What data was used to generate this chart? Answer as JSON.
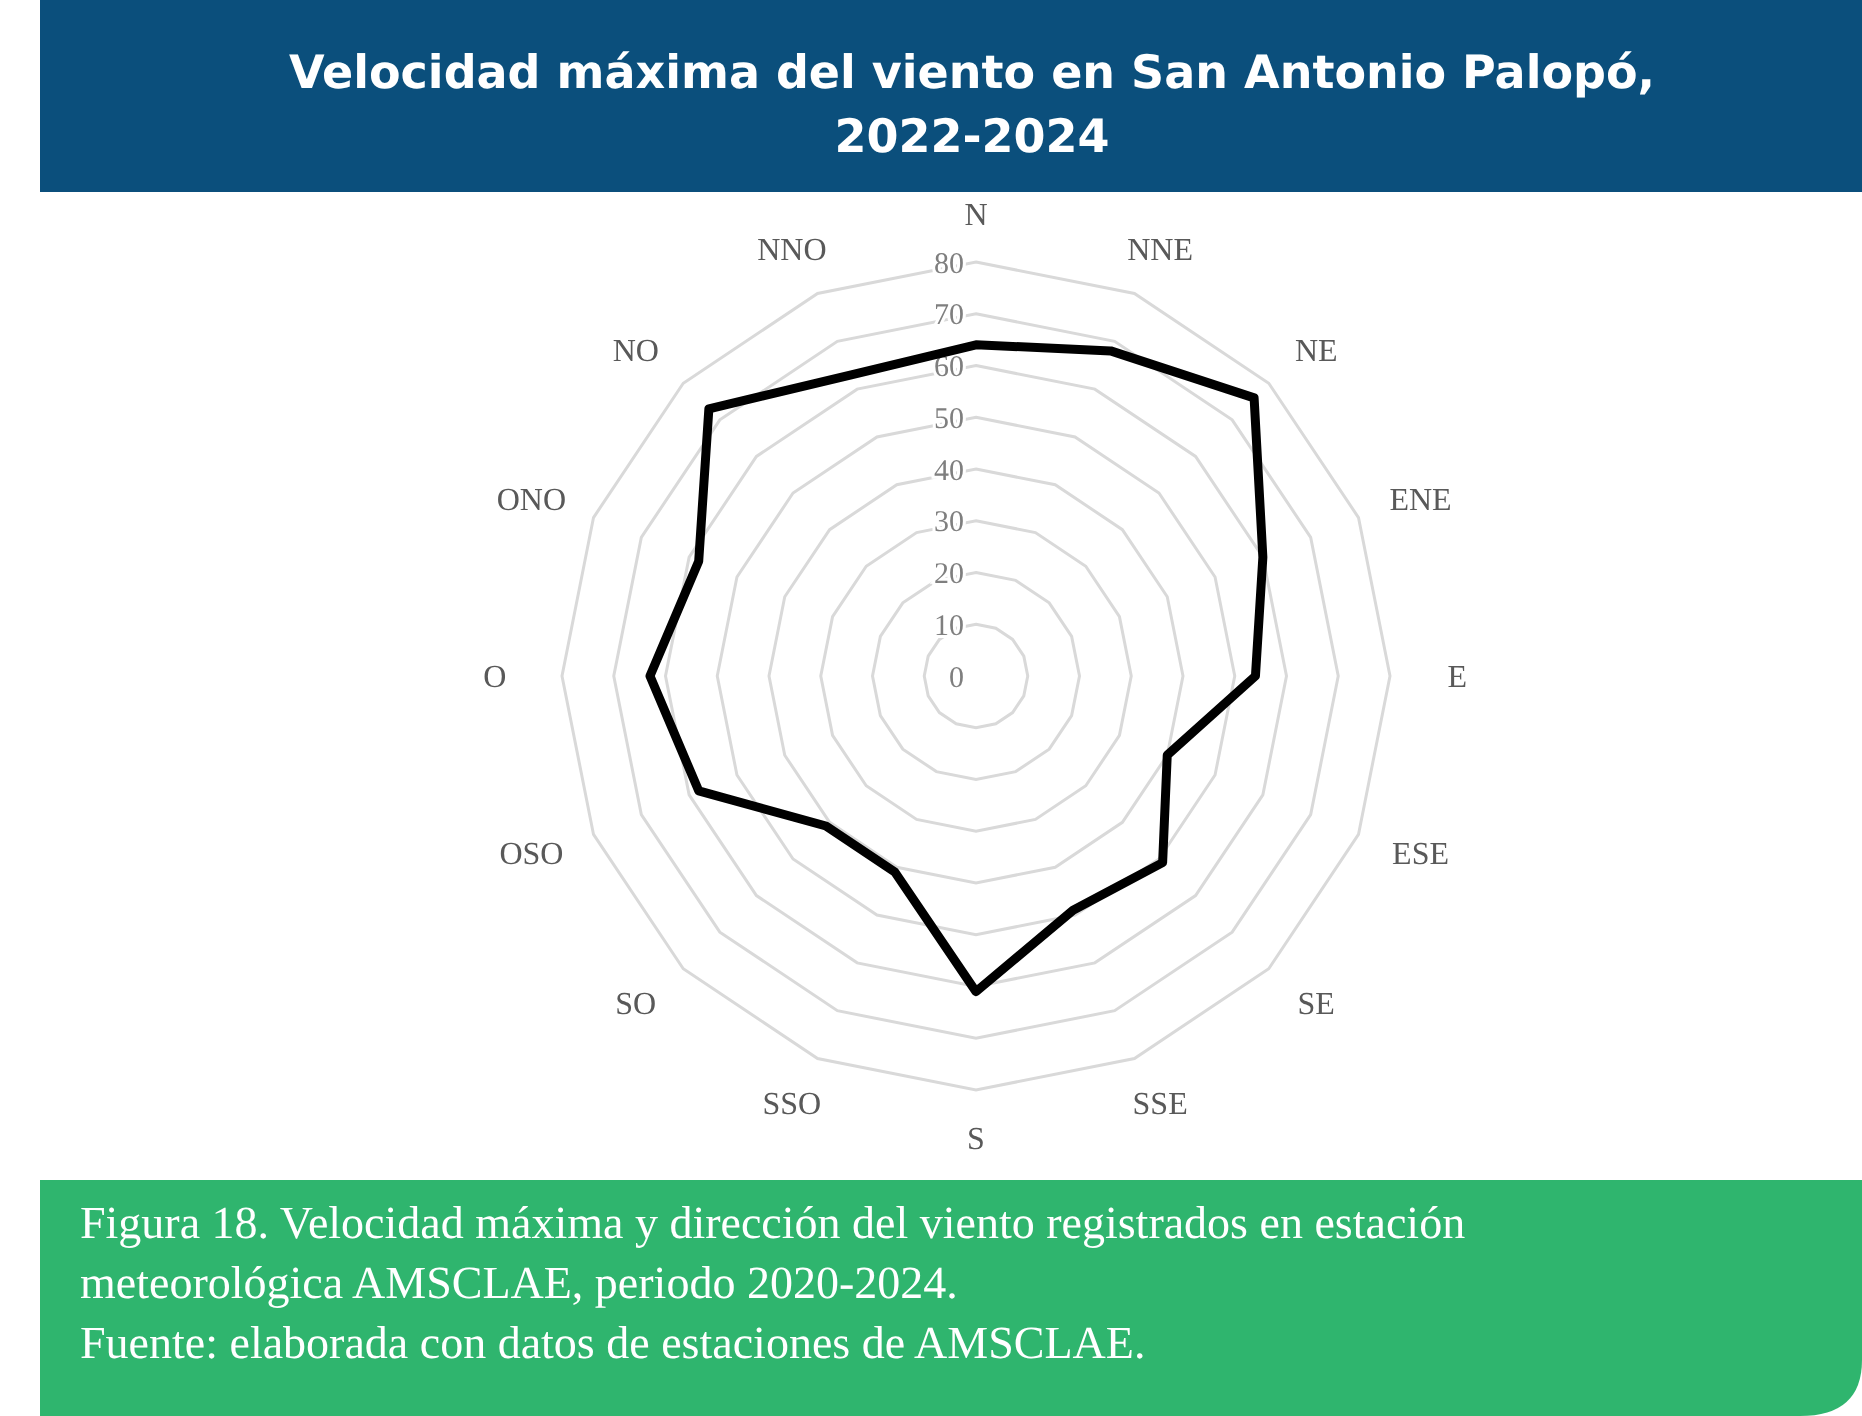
{
  "chart_data": {
    "type": "radar",
    "title": "Velocidad máxima del viento en San Antonio Palopó, 2022-2024",
    "categories": [
      "N",
      "NNE",
      "NE",
      "ENE",
      "E",
      "ESE",
      "SE",
      "SSE",
      "S",
      "SSO",
      "SO",
      "OSO",
      "O",
      "ONO",
      "NO",
      "NNO"
    ],
    "series": [
      {
        "color": "#000000",
        "values": [
          64,
          68,
          76,
          60,
          54,
          40,
          51,
          49,
          61,
          41,
          41,
          58,
          63,
          58,
          73,
          63
        ]
      }
    ],
    "ylim": [
      0,
      80
    ],
    "yticks": [
      0,
      10,
      20,
      30,
      40,
      50,
      60,
      70,
      80
    ],
    "grid": true,
    "annotations": [
      "Figura 18. Velocidad máxima y dirección del viento registrados en estación meteorológica AMSCLAE, periodo 2020-2024.",
      "Fuente: elaborada con datos de estaciones de AMSCLAE."
    ]
  }
}
